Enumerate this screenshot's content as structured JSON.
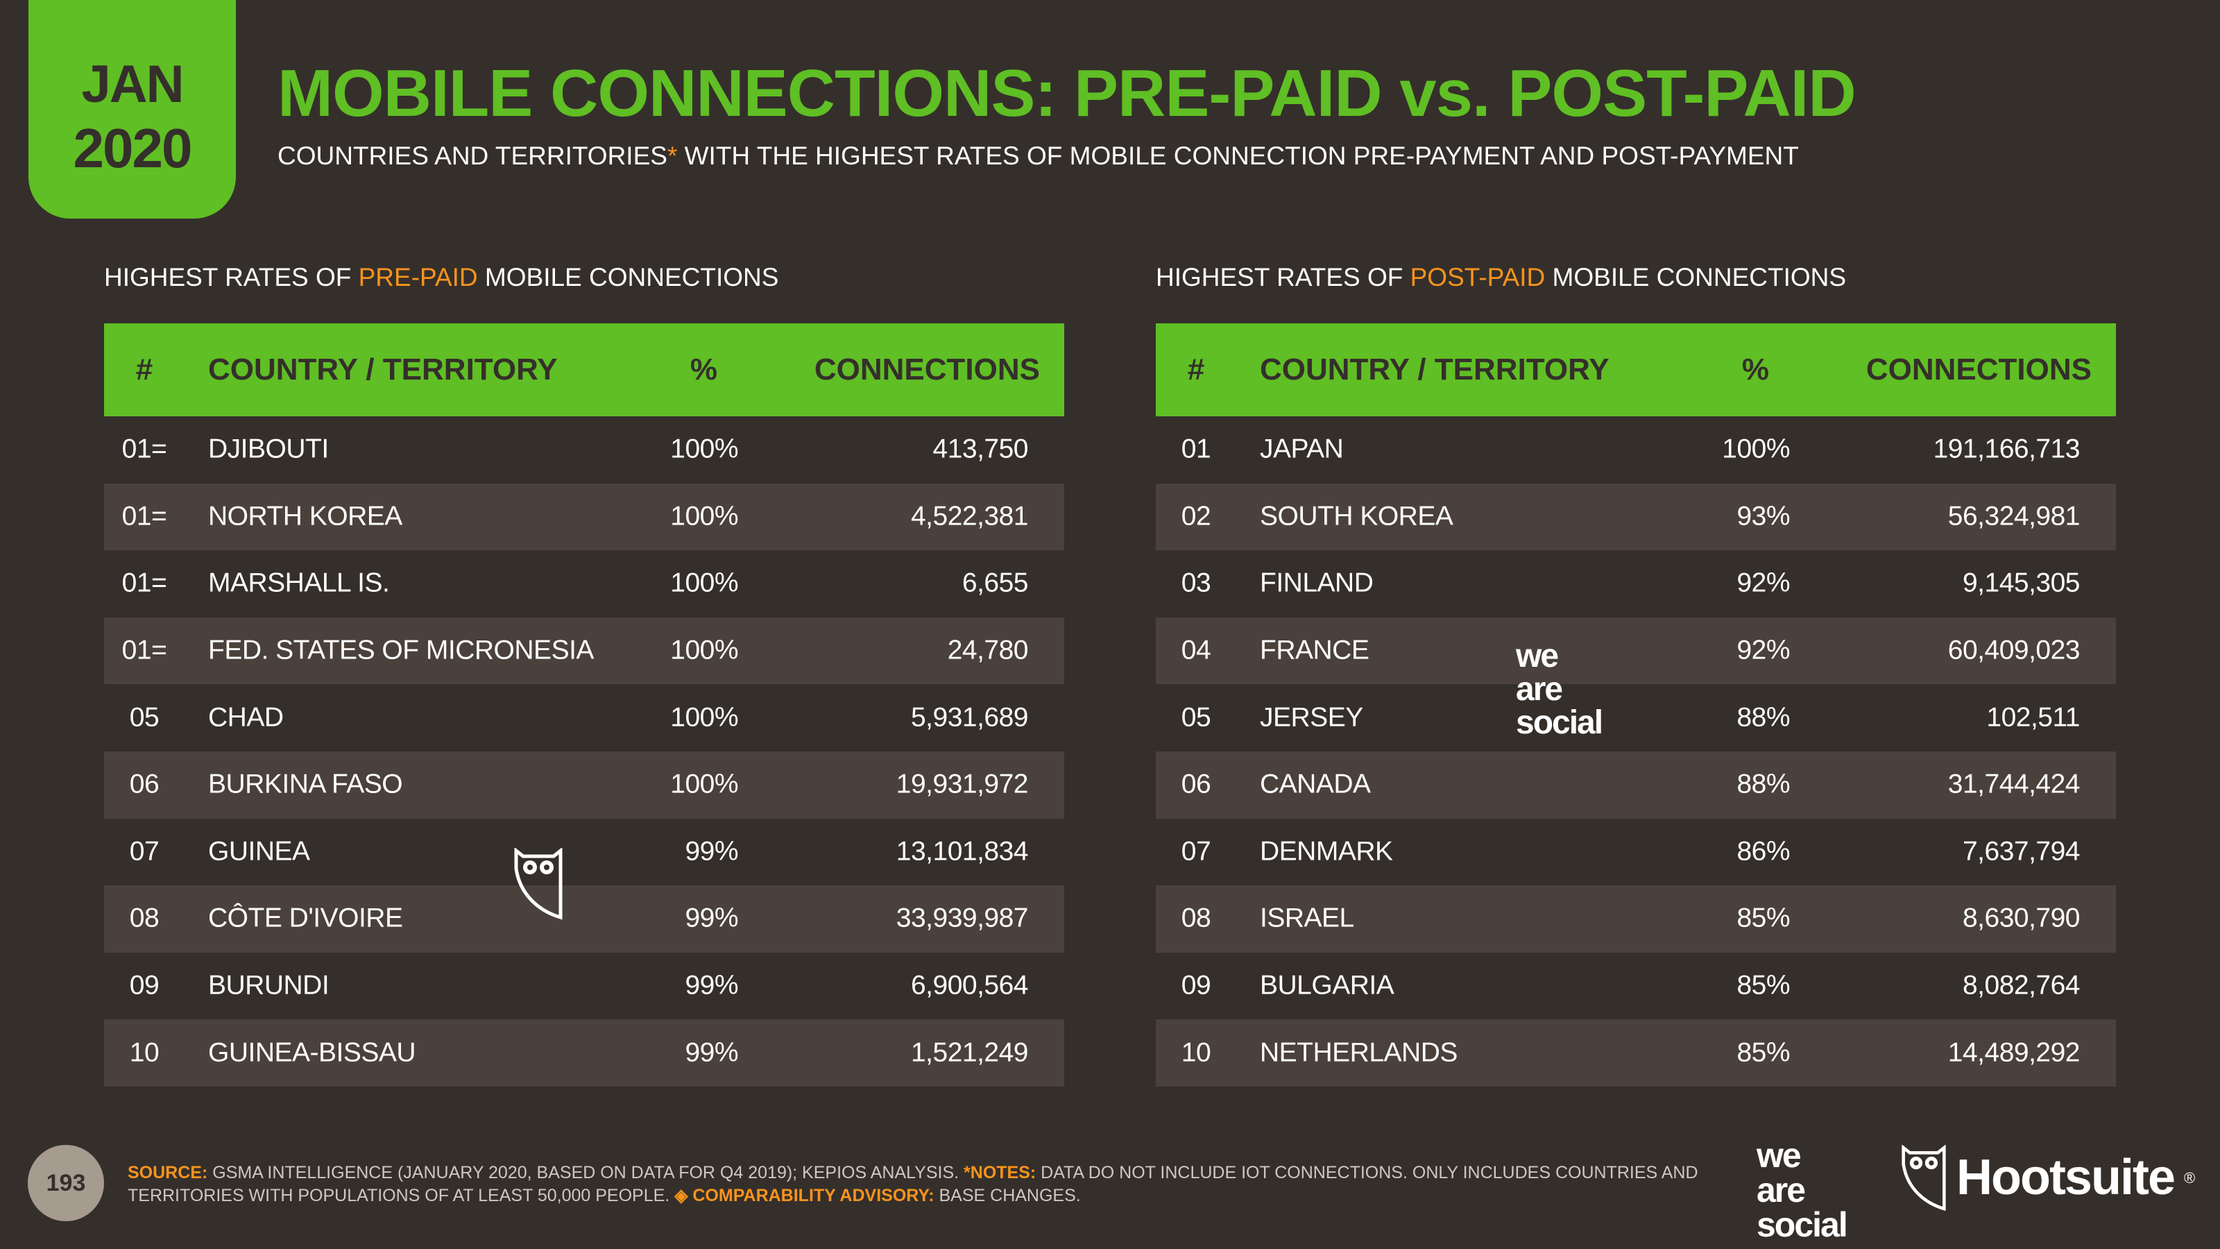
{
  "date_tab": {
    "month": "JAN",
    "year": "2020"
  },
  "title": "MOBILE CONNECTIONS: PRE-PAID vs. POST-PAID",
  "subtitle": {
    "part1": "COUNTRIES AND TERRITORIES",
    "asterisk": "*",
    "part2": " WITH THE HIGHEST RATES OF MOBILE CONNECTION PRE-PAYMENT AND POST-PAYMENT"
  },
  "prepaid": {
    "heading": {
      "pre": "HIGHEST RATES OF ",
      "highlight": "PRE-PAID",
      "post": " MOBILE CONNECTIONS"
    },
    "columns": [
      "#",
      "COUNTRY / TERRITORY",
      "%",
      "CONNECTIONS"
    ],
    "rows": [
      [
        "01=",
        "DJIBOUTI",
        "100%",
        "413,750"
      ],
      [
        "01=",
        "NORTH KOREA",
        "100%",
        "4,522,381"
      ],
      [
        "01=",
        "MARSHALL IS.",
        "100%",
        "6,655"
      ],
      [
        "01=",
        "FED. STATES OF MICRONESIA",
        "100%",
        "24,780"
      ],
      [
        "05",
        "CHAD",
        "100%",
        "5,931,689"
      ],
      [
        "06",
        "BURKINA FASO",
        "100%",
        "19,931,972"
      ],
      [
        "07",
        "GUINEA",
        "99%",
        "13,101,834"
      ],
      [
        "08",
        "CÔTE D'IVOIRE",
        "99%",
        "33,939,987"
      ],
      [
        "09",
        "BURUNDI",
        "99%",
        "6,900,564"
      ],
      [
        "10",
        "GUINEA-BISSAU",
        "99%",
        "1,521,249"
      ]
    ]
  },
  "postpaid": {
    "heading": {
      "pre": "HIGHEST RATES OF ",
      "highlight": "POST-PAID",
      "post": " MOBILE CONNECTIONS"
    },
    "columns": [
      "#",
      "COUNTRY / TERRITORY",
      "%",
      "CONNECTIONS"
    ],
    "rows": [
      [
        "01",
        "JAPAN",
        "100%",
        "191,166,713"
      ],
      [
        "02",
        "SOUTH KOREA",
        "93%",
        "56,324,981"
      ],
      [
        "03",
        "FINLAND",
        "92%",
        "9,145,305"
      ],
      [
        "04",
        "FRANCE",
        "92%",
        "60,409,023"
      ],
      [
        "05",
        "JERSEY",
        "88%",
        "102,511"
      ],
      [
        "06",
        "CANADA",
        "88%",
        "31,744,424"
      ],
      [
        "07",
        "DENMARK",
        "86%",
        "7,637,794"
      ],
      [
        "08",
        "ISRAEL",
        "85%",
        "8,630,790"
      ],
      [
        "09",
        "BULGARIA",
        "85%",
        "8,082,764"
      ],
      [
        "10",
        "NETHERLANDS",
        "85%",
        "14,489,292"
      ]
    ]
  },
  "footer": {
    "page_number": "193",
    "source_label": "SOURCE:",
    "source_text": " GSMA INTELLIGENCE (JANUARY 2020, BASED ON DATA FOR Q4 2019); KEPIOS ANALYSIS. ",
    "notes_label": "*NOTES:",
    "notes_text": " DATA DO NOT INCLUDE IOT CONNECTIONS. ONLY INCLUDES COUNTRIES AND TERRITORIES WITH POPULATIONS OF AT LEAST 50,000 PEOPLE. ",
    "advisory_label": "◈ COMPARABILITY ADVISORY:",
    "advisory_text": " BASE CHANGES."
  },
  "logos": {
    "we_are_social": [
      "we",
      "are",
      "social"
    ],
    "hootsuite": "Hootsuite",
    "hootsuite_mark": "®"
  },
  "colors": {
    "background": "#352f2b",
    "accent_green": "#5fbf24",
    "highlight_orange": "#f7941d",
    "row_alt": "#4a413c"
  }
}
